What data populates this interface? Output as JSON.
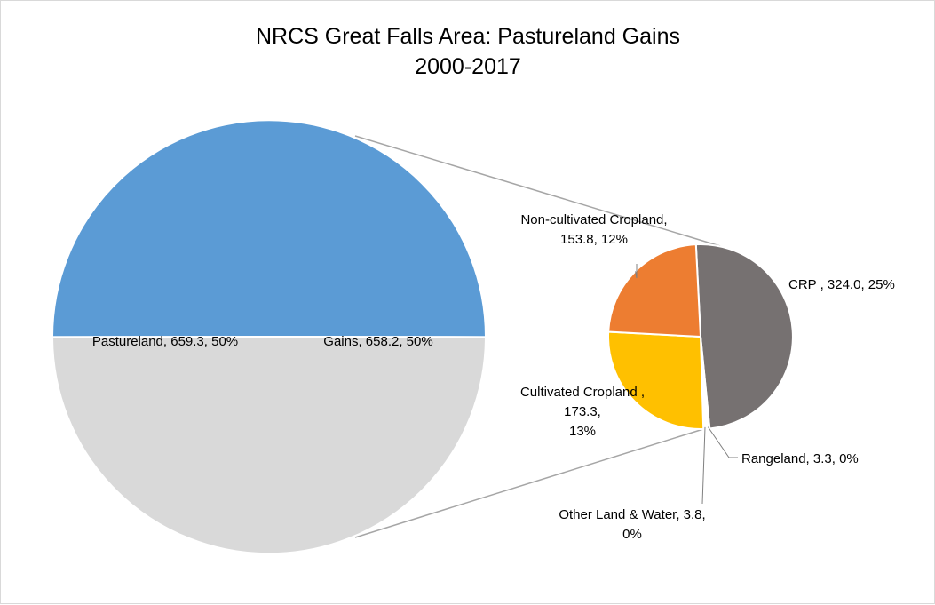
{
  "chart_data": {
    "type": "pie",
    "subtype": "pie-of-pie",
    "title": [
      "NRCS Great Falls Area: Pastureland Gains",
      "2000-2017"
    ],
    "main_pie": {
      "slices": [
        {
          "name": "Pastureland",
          "value": 659.3,
          "percent": "50%",
          "color": "#5b9bd5",
          "label_lines": [
            "Pastureland, 659.3, 50%"
          ]
        },
        {
          "name": "Gains",
          "value": 658.2,
          "percent": "50%",
          "color": "#d9d9d9",
          "label_lines": [
            "Gains, 658.2, 50%"
          ]
        }
      ]
    },
    "secondary_pie": {
      "slices": [
        {
          "name": "CRP",
          "value": 324.0,
          "percent": "25%",
          "color": "#767171",
          "label_lines": [
            "CRP , 324.0, 25%"
          ]
        },
        {
          "name": "Rangeland",
          "value": 3.3,
          "percent": "0%",
          "color": "#ffffff",
          "label_lines": [
            "Rangeland, 3.3, 0%"
          ]
        },
        {
          "name": "Other Land & Water",
          "value": 3.8,
          "percent": "0%",
          "color": "#ffffff",
          "label_lines": [
            "Other Land & Water, 3.8,",
            "0%"
          ]
        },
        {
          "name": "Cultivated Cropland",
          "value": 173.3,
          "percent": "13%",
          "color": "#ffc000",
          "label_lines": [
            "Cultivated Cropland ,",
            "173.3,",
            "13%"
          ]
        },
        {
          "name": "Non-cultivated Cropland",
          "value": 153.8,
          "percent": "12%",
          "color": "#ed7d31",
          "label_lines": [
            "Non-cultivated Cropland,",
            "153.8, 12%"
          ]
        }
      ]
    }
  }
}
